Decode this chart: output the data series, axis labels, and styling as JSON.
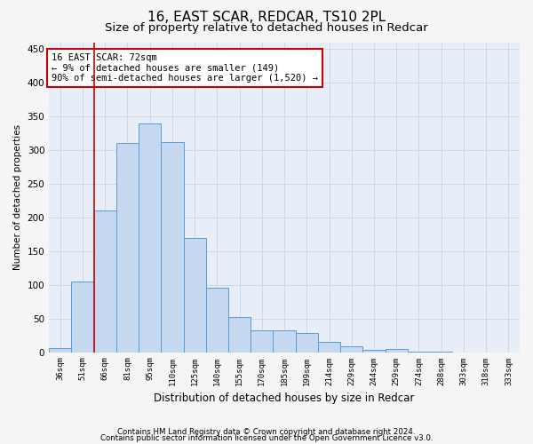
{
  "title1": "16, EAST SCAR, REDCAR, TS10 2PL",
  "title2": "Size of property relative to detached houses in Redcar",
  "xlabel": "Distribution of detached houses by size in Redcar",
  "ylabel": "Number of detached properties",
  "categories": [
    "36sqm",
    "51sqm",
    "66sqm",
    "81sqm",
    "95sqm",
    "110sqm",
    "125sqm",
    "140sqm",
    "155sqm",
    "170sqm",
    "185sqm",
    "199sqm",
    "214sqm",
    "229sqm",
    "244sqm",
    "259sqm",
    "274sqm",
    "288sqm",
    "303sqm",
    "318sqm",
    "333sqm"
  ],
  "values": [
    6,
    105,
    210,
    310,
    340,
    312,
    170,
    95,
    52,
    33,
    33,
    29,
    15,
    8,
    4,
    5,
    1,
    1,
    0,
    0,
    0
  ],
  "bar_color": "#c5d8f0",
  "bar_edge_color": "#5b9bd5",
  "red_line_index": 2,
  "annotation_text": "16 EAST SCAR: 72sqm\n← 9% of detached houses are smaller (149)\n90% of semi-detached houses are larger (1,520) →",
  "annotation_box_color": "#ffffff",
  "annotation_box_edge": "#cc0000",
  "footer1": "Contains HM Land Registry data © Crown copyright and database right 2024.",
  "footer2": "Contains public sector information licensed under the Open Government Licence v3.0.",
  "ylim": [
    0,
    460
  ],
  "yticks": [
    0,
    50,
    100,
    150,
    200,
    250,
    300,
    350,
    400,
    450
  ],
  "bg_color": "#e8eef8",
  "grid_color": "#d0d8e8",
  "fig_color": "#f5f5f5",
  "title1_fontsize": 11,
  "title2_fontsize": 9.5
}
